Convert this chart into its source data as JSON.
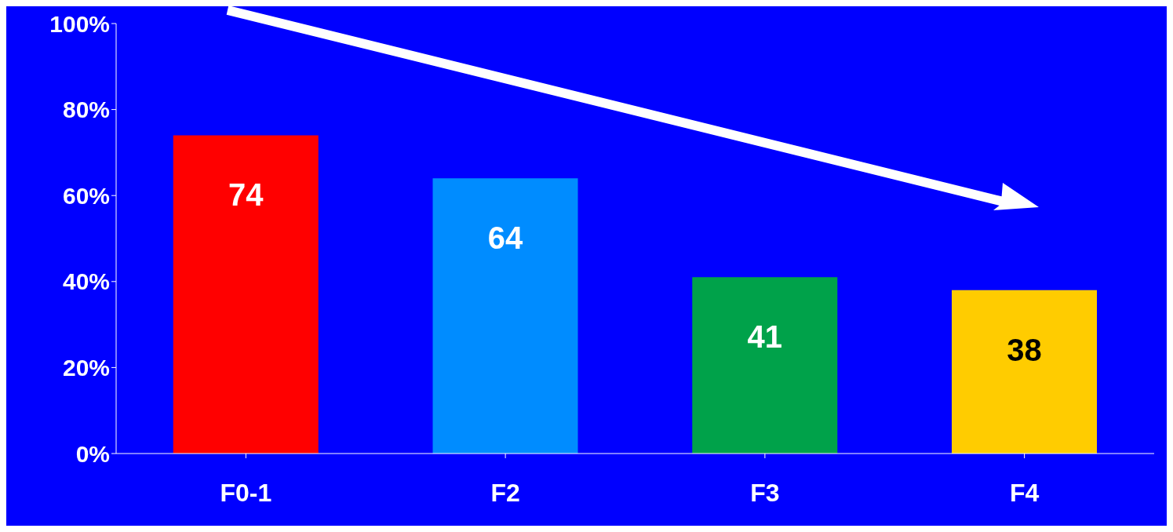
{
  "chart_data": {
    "type": "bar",
    "categories": [
      "F0-1",
      "F2",
      "F3",
      "F4"
    ],
    "values": [
      74,
      64,
      41,
      38
    ],
    "colors": [
      "#ff0000",
      "#008cff",
      "#00a24a",
      "#ffcc00"
    ],
    "ylim": [
      0,
      100
    ],
    "yticks": [
      {
        "value": 0,
        "label": "0%"
      },
      {
        "value": 20,
        "label": "20%"
      },
      {
        "value": 40,
        "label": "40%"
      },
      {
        "value": 60,
        "label": "60%"
      },
      {
        "value": 80,
        "label": "80%"
      },
      {
        "value": 100,
        "label": "100%"
      }
    ],
    "data_labels": true,
    "grid": false,
    "legend": false
  }
}
